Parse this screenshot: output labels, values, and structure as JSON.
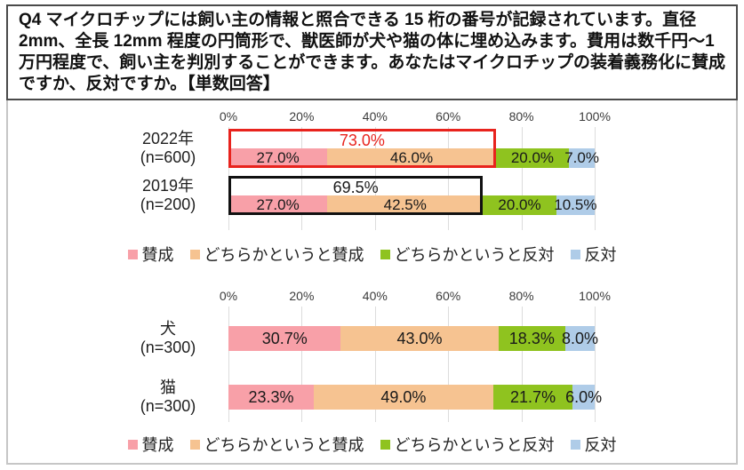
{
  "question": {
    "text": "Q4 マイクロチップには飼い主の情報と照合できる 15 桁の番号が記録されています。直径 2mm、全長 12mm 程度の円筒形で、獣医師が犬や猫の体に埋め込みます。費用は数千円〜1 万円程度で、飼い主を判別することができます。あなたはマイクロチップの装着義務化に賛成ですか、反対ですか。【単数回答】"
  },
  "legend": {
    "items": [
      "賛成",
      "どちらかというと賛成",
      "どちらかというと反対",
      "反対"
    ]
  },
  "colors": {
    "series": [
      "#F8A0A8",
      "#F6C391",
      "#8FC31F",
      "#AFCCE8"
    ],
    "highlight_red": "#E8231D",
    "highlight_black": "#111111",
    "grid": "#DCDCDC"
  },
  "chart_data": [
    {
      "type": "bar",
      "stacked": true,
      "orientation": "horizontal",
      "unit": "%",
      "xlim": [
        0,
        100
      ],
      "grid": true,
      "axis_ticks": [
        "0%",
        "20%",
        "40%",
        "60%",
        "80%",
        "100%"
      ],
      "series_names": [
        "賛成",
        "どちらかというと賛成",
        "どちらかというと反対",
        "反対"
      ],
      "rows": [
        {
          "label_lines": [
            "2022年",
            "(n=600)"
          ],
          "values": [
            27.0,
            46.0,
            20.0,
            7.0
          ],
          "labels": [
            "27.0%",
            "46.0%",
            "20.0%",
            "7.0%"
          ],
          "annotation": {
            "total": 73.0,
            "label": "73.0%",
            "border": "#E8231D",
            "text": "#E8231D"
          }
        },
        {
          "label_lines": [
            "2019年",
            "(n=200)"
          ],
          "values": [
            27.0,
            42.5,
            20.0,
            10.5
          ],
          "labels": [
            "27.0%",
            "42.5%",
            "20.0%",
            "10.5%"
          ],
          "annotation": {
            "total": 69.5,
            "label": "69.5%",
            "border": "#111111",
            "text": "#1A1A1A"
          }
        }
      ]
    },
    {
      "type": "bar",
      "stacked": true,
      "orientation": "horizontal",
      "unit": "%",
      "xlim": [
        0,
        100
      ],
      "grid": true,
      "axis_ticks": [
        "0%",
        "20%",
        "40%",
        "60%",
        "80%",
        "100%"
      ],
      "series_names": [
        "賛成",
        "どちらかというと賛成",
        "どちらかというと反対",
        "反対"
      ],
      "rows": [
        {
          "label_lines": [
            "犬",
            "(n=300)"
          ],
          "values": [
            30.7,
            43.0,
            18.3,
            8.0
          ],
          "labels": [
            "30.7%",
            "43.0%",
            "18.3%",
            "8.0%"
          ]
        },
        {
          "label_lines": [
            "猫",
            "(n=300)"
          ],
          "values": [
            23.3,
            49.0,
            21.7,
            6.0
          ],
          "labels": [
            "23.3%",
            "49.0%",
            "21.7%",
            "6.0%"
          ]
        }
      ]
    }
  ]
}
